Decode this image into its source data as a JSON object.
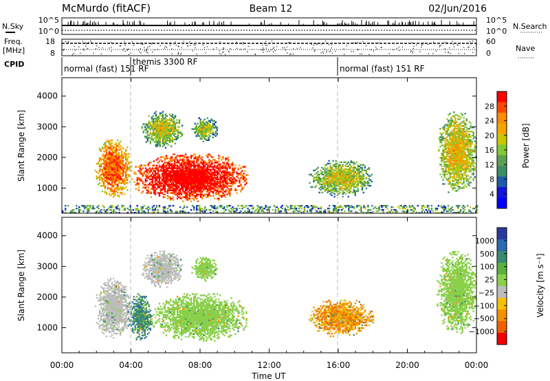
{
  "header": {
    "station": "McMurdo (fitACF)",
    "beam": "Beam 12",
    "date": "02/Jun/2016"
  },
  "panels": {
    "nsky_label": "N.Sky",
    "nsky_ticks": [
      "10^5",
      "10^0"
    ],
    "nsearch_label": "N.Search",
    "nsearch_ticks": [
      "10^5",
      "10^0"
    ],
    "freq_label": [
      "Freq.",
      "[MHz]"
    ],
    "freq_ticks": [
      "18",
      "8"
    ],
    "nave_label": "Nave",
    "nave_ticks": [
      "60",
      "0"
    ],
    "cpid_label": "CPID",
    "cpid_segments": [
      {
        "label": "normal (fast) 151 RF"
      },
      {
        "label": "themis 3300 RF"
      },
      {
        "label": "normal (fast) 151 RF"
      }
    ]
  },
  "colorbars": {
    "power": {
      "label": "Power [dB]",
      "ticks": [
        "28",
        "24",
        "20",
        "16",
        "12",
        "8",
        "4"
      ],
      "colors": [
        "#ff0000",
        "#ff4a00",
        "#ff8c00",
        "#f5a500",
        "#c8c800",
        "#82c832",
        "#5aa050",
        "#3c8c64",
        "#1e5aaa",
        "#1414dc",
        "#0000ff"
      ]
    },
    "velocity": {
      "label": "Velocity [m s⁻¹]",
      "ticks": [
        "1000",
        "500",
        "100",
        "25",
        "−25",
        "−100",
        "−500",
        "−1000"
      ],
      "colors": [
        "#2a3aa0",
        "#2a6ab0",
        "#3a8a70",
        "#5cb040",
        "#8ad04a",
        "#bdbdbd",
        "#f5c000",
        "#f59000",
        "#f06000",
        "#f00000"
      ]
    }
  },
  "chart_data": [
    {
      "type": "heatmap",
      "title": "Power",
      "xlabel": "Time UT",
      "ylabel": "Slant Range [km]",
      "x_ticks": [
        "00:00",
        "04:00",
        "08:00",
        "12:00",
        "16:00",
        "20:00",
        "00:00"
      ],
      "xlim_hours": [
        0,
        24
      ],
      "y_ticks": [
        1000,
        2000,
        3000,
        4000
      ],
      "ylim_km": [
        180,
        4600
      ],
      "colorbar": "Power [dB]",
      "clim": [
        0,
        30
      ],
      "grid": false,
      "regions": [
        {
          "t_start": 1.9,
          "t_end": 4.0,
          "range_km": [
            650,
            2600
          ],
          "power_db": 18
        },
        {
          "t_start": 4.0,
          "t_end": 10.8,
          "range_km": [
            550,
            2100
          ],
          "power_db": 24
        },
        {
          "t_start": 4.6,
          "t_end": 7.0,
          "range_km": [
            2300,
            3500
          ],
          "power_db": 10
        },
        {
          "t_start": 7.5,
          "t_end": 9.0,
          "range_km": [
            2500,
            3300
          ],
          "power_db": 8
        },
        {
          "t_start": 14.3,
          "t_end": 18.0,
          "range_km": [
            700,
            1900
          ],
          "power_db": 10
        },
        {
          "t_start": 21.7,
          "t_end": 24.0,
          "range_km": [
            800,
            3500
          ],
          "power_db": 12
        },
        {
          "t_start": 0.0,
          "t_end": 24.0,
          "range_km": [
            180,
            450
          ],
          "power_db": 8
        }
      ]
    },
    {
      "type": "heatmap",
      "title": "Velocity",
      "xlabel": "Time UT",
      "ylabel": "Slant Range [km]",
      "x_ticks": [
        "00:00",
        "04:00",
        "08:00",
        "12:00",
        "16:00",
        "20:00",
        "00:00"
      ],
      "xlim_hours": [
        0,
        24
      ],
      "y_ticks": [
        1000,
        2000,
        3000,
        4000
      ],
      "ylim_km": [
        180,
        4600
      ],
      "colorbar": "Velocity [m s⁻¹]",
      "clim": [
        -1000,
        1000
      ],
      "grid": false,
      "regions": [
        {
          "t_start": 1.9,
          "t_end": 4.0,
          "range_km": [
            650,
            2600
          ],
          "velocity": -100
        },
        {
          "t_start": 3.8,
          "t_end": 5.2,
          "range_km": [
            550,
            2100
          ],
          "velocity": 500
        },
        {
          "t_start": 5.2,
          "t_end": 10.8,
          "range_km": [
            550,
            2100
          ],
          "velocity": 100
        },
        {
          "t_start": 4.6,
          "t_end": 7.0,
          "range_km": [
            2300,
            3500
          ],
          "velocity": -100
        },
        {
          "t_start": 7.5,
          "t_end": 9.0,
          "range_km": [
            2500,
            3300
          ],
          "velocity": 25
        },
        {
          "t_start": 14.3,
          "t_end": 18.0,
          "range_km": [
            700,
            1900
          ],
          "velocity": -500
        },
        {
          "t_start": 21.7,
          "t_end": 24.0,
          "range_km": [
            800,
            3500
          ],
          "velocity": 100
        }
      ]
    }
  ]
}
